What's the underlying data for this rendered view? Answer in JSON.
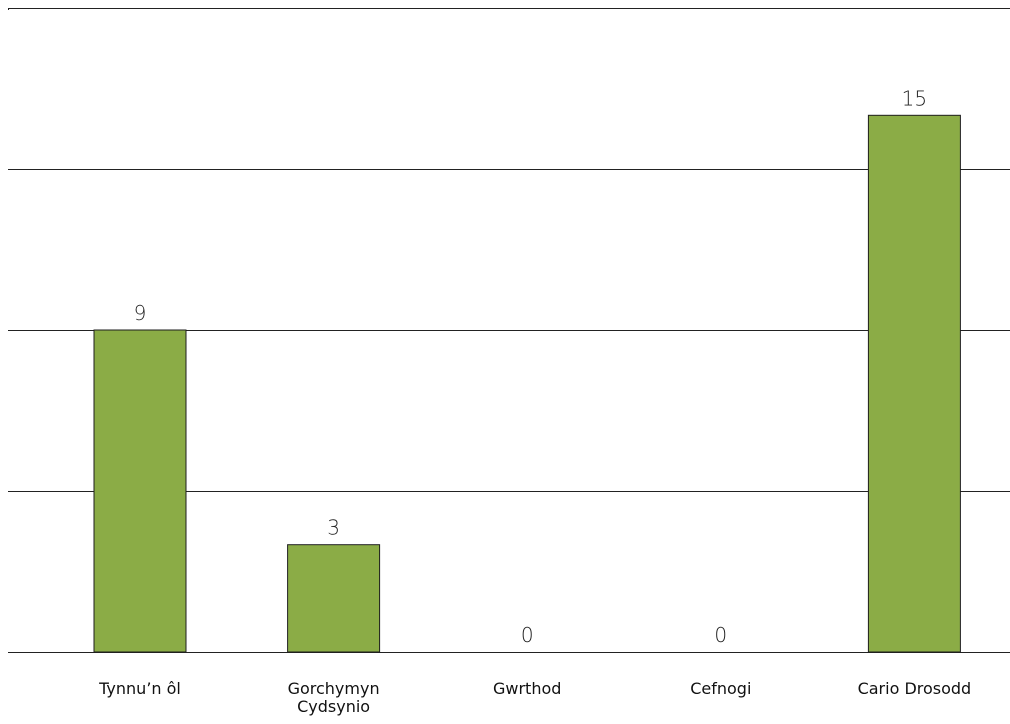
{
  "chart_data": {
    "type": "bar",
    "categories": [
      [
        "Tynnu’n ôl"
      ],
      [
        "Gorchymyn",
        "Cydsynio"
      ],
      [
        "Gwrthod"
      ],
      [
        "Cefnogi"
      ],
      [
        "Cario Drosodd"
      ]
    ],
    "values": [
      9,
      3,
      0,
      0,
      15
    ],
    "value_labels": [
      "9",
      "3",
      "0",
      "0",
      "15"
    ],
    "ylim": [
      0,
      18
    ],
    "gridlines": [
      0,
      4.5,
      9,
      13.5,
      18
    ],
    "grid": true,
    "legend": "none",
    "title": "",
    "xlabel": "",
    "ylabel": "",
    "colors": {
      "bar_fill": "#8bac46",
      "bar_stroke": "#1e1e1e",
      "grid": "#222222"
    }
  }
}
